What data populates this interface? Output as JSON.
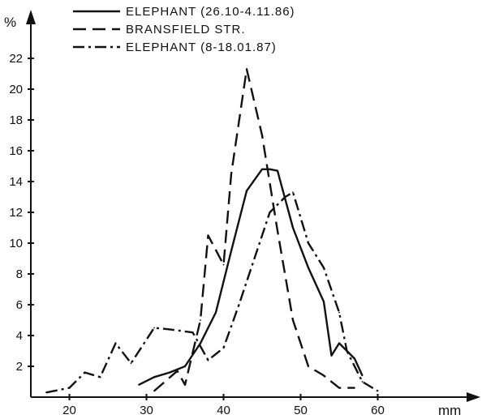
{
  "chart_data": {
    "type": "line",
    "title": "",
    "xlabel": "mm",
    "ylabel": "%",
    "xlim": [
      15,
      62
    ],
    "ylim": [
      0,
      24
    ],
    "x_ticks": [
      20,
      30,
      40,
      50,
      60
    ],
    "y_ticks": [
      2,
      4,
      6,
      8,
      10,
      12,
      14,
      16,
      18,
      20,
      22
    ],
    "grid": false,
    "legend_position": "top-left",
    "series": [
      {
        "name": "ELEPHANT (26.10-4.11.86)",
        "dash": "solid",
        "color": "#111111",
        "points": [
          [
            29,
            0.8
          ],
          [
            31,
            1.3
          ],
          [
            33,
            1.6
          ],
          [
            35,
            2.0
          ],
          [
            37,
            3.5
          ],
          [
            39,
            5.5
          ],
          [
            41,
            9.5
          ],
          [
            43,
            13.4
          ],
          [
            45,
            14.8
          ],
          [
            46,
            14.8
          ],
          [
            47,
            14.7
          ],
          [
            49,
            11.0
          ],
          [
            51,
            8.4
          ],
          [
            53,
            6.2
          ],
          [
            54,
            2.7
          ],
          [
            55,
            3.5
          ],
          [
            57,
            2.5
          ],
          [
            58,
            1.4
          ]
        ]
      },
      {
        "name": "BRANSFIELD STR.",
        "dash": "dashed",
        "color": "#111111",
        "points": [
          [
            31,
            0.4
          ],
          [
            34,
            1.7
          ],
          [
            35,
            0.8
          ],
          [
            37,
            5.0
          ],
          [
            38,
            10.5
          ],
          [
            40,
            8.6
          ],
          [
            41,
            14.5
          ],
          [
            43,
            21.3
          ],
          [
            45,
            17.0
          ],
          [
            47,
            10.8
          ],
          [
            49,
            5.0
          ],
          [
            51,
            2.0
          ],
          [
            53,
            1.4
          ],
          [
            55,
            0.6
          ],
          [
            57,
            0.6
          ]
        ]
      },
      {
        "name": "ELEPHANT (8-18.01.87)",
        "dash": "dashdot",
        "color": "#111111",
        "points": [
          [
            17,
            0.3
          ],
          [
            20,
            0.6
          ],
          [
            22,
            1.6
          ],
          [
            24,
            1.3
          ],
          [
            26,
            3.5
          ],
          [
            28,
            2.2
          ],
          [
            31,
            4.5
          ],
          [
            33,
            4.4
          ],
          [
            36,
            4.2
          ],
          [
            38,
            2.4
          ],
          [
            40,
            3.2
          ],
          [
            42,
            6.0
          ],
          [
            44,
            9.0
          ],
          [
            46,
            12.0
          ],
          [
            48,
            13.0
          ],
          [
            49,
            13.3
          ],
          [
            51,
            10.0
          ],
          [
            53,
            8.4
          ],
          [
            55,
            5.5
          ],
          [
            56,
            3.0
          ],
          [
            58,
            1.0
          ],
          [
            60,
            0.4
          ]
        ]
      }
    ]
  }
}
